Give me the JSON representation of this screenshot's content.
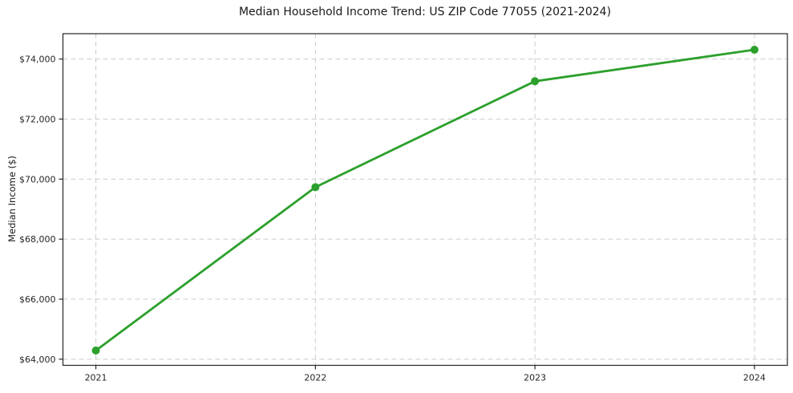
{
  "figure": {
    "background": "#ffffff"
  },
  "chart_data": {
    "type": "line",
    "title": "Median Household Income Trend: US ZIP Code 77055 (2021-2024)",
    "xlabel": "",
    "ylabel": "Median Income ($)",
    "categories": [
      "2021",
      "2022",
      "2023",
      "2024"
    ],
    "x": [
      2021,
      2022,
      2023,
      2024
    ],
    "series": [
      {
        "name": "Median Household Income",
        "values": [
          64290,
          69730,
          73260,
          74310
        ],
        "color": "#2ca02c",
        "marker": "circle",
        "line_width": 2.8,
        "marker_diameter": 10
      }
    ],
    "xlim": [
      2020.85,
      2024.15
    ],
    "ylim": [
      63795,
      74845
    ],
    "yticks": [
      {
        "value": 64000,
        "label": "$64,000"
      },
      {
        "value": 66000,
        "label": "$66,000"
      },
      {
        "value": 68000,
        "label": "$68,000"
      },
      {
        "value": 70000,
        "label": "$70,000"
      },
      {
        "value": 72000,
        "label": "$72,000"
      },
      {
        "value": 74000,
        "label": "$74,000"
      }
    ],
    "grid": {
      "visible": true,
      "style": "dashed",
      "color": "#cccccc"
    },
    "legend": {
      "visible": false,
      "position": "none"
    },
    "axis_color": "#262626",
    "text_color": "#1a1a1a"
  }
}
